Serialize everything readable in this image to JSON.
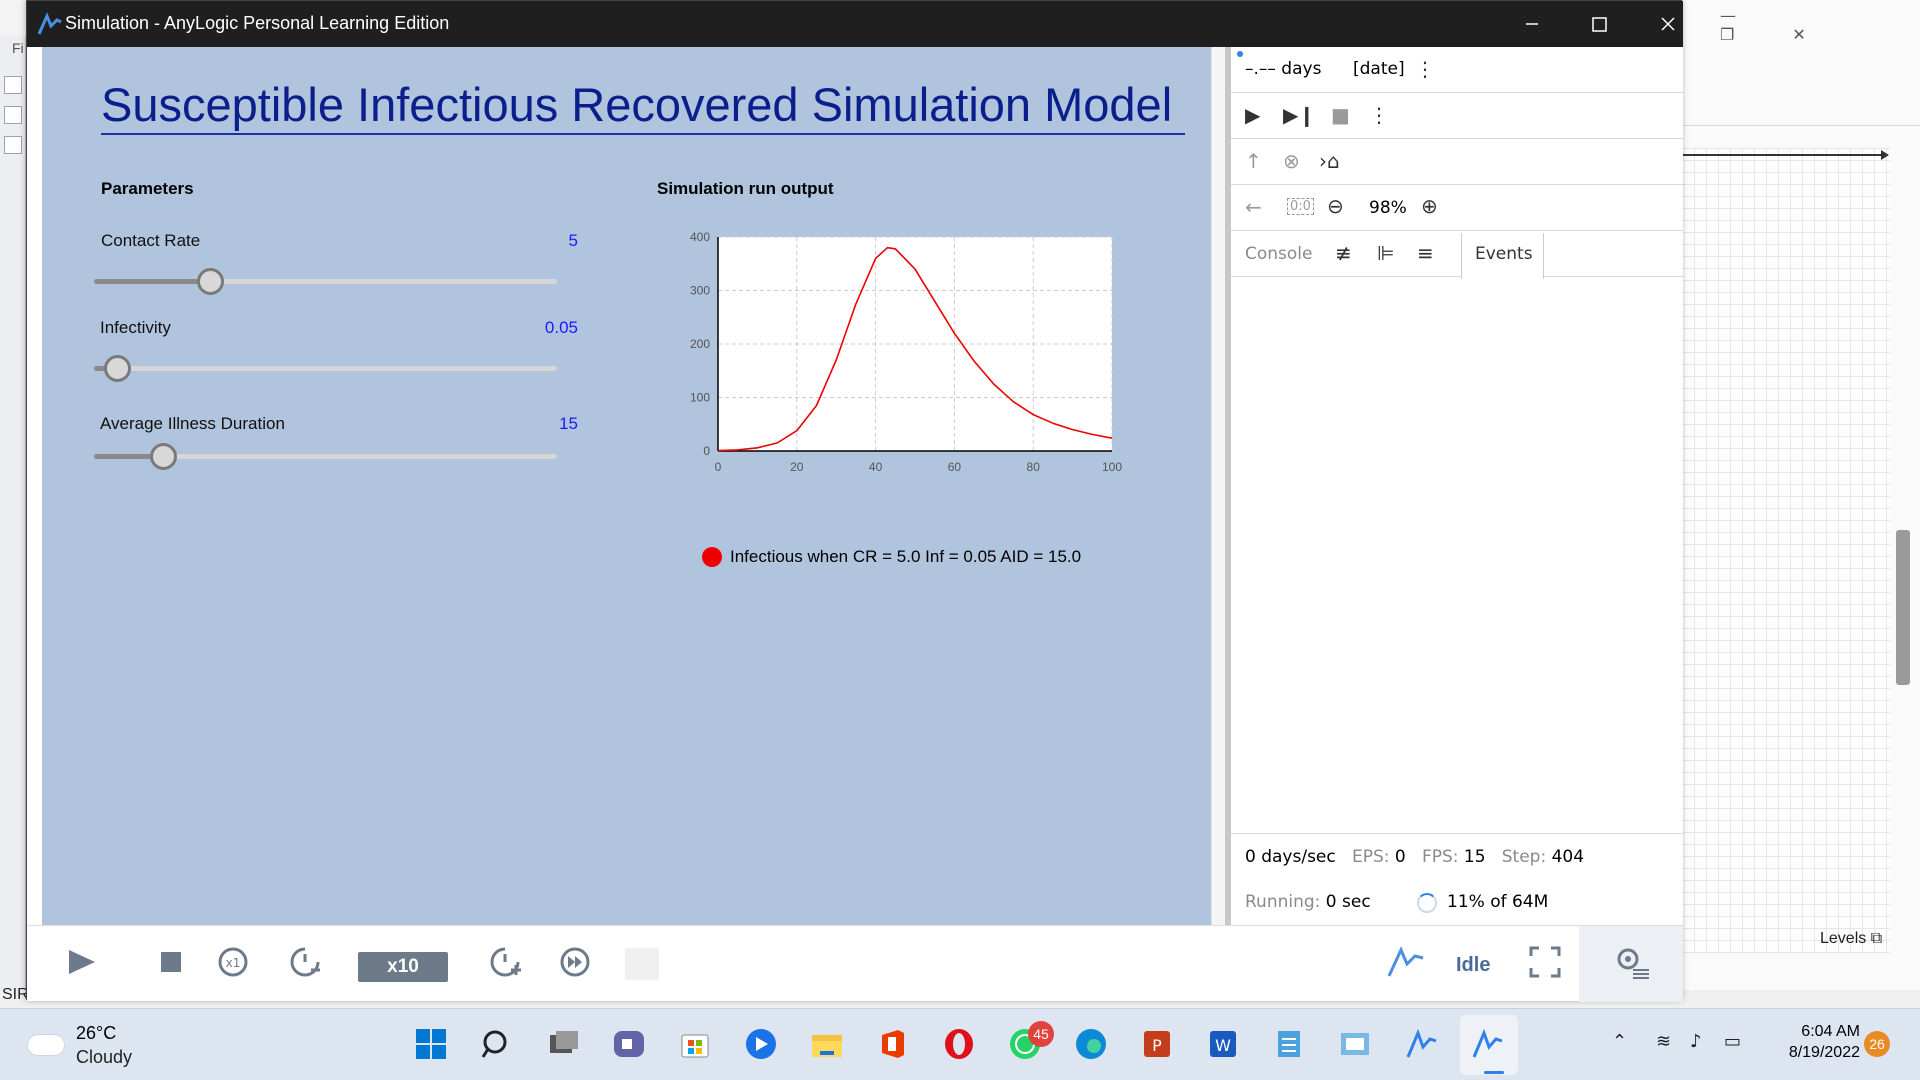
{
  "window": {
    "title": "Simulation - AnyLogic Personal Learning Edition"
  },
  "model": {
    "title": "Susceptible Infectious Recovered Simulation Model",
    "parameters_heading": "Parameters",
    "output_heading": "Simulation run output",
    "parameters": [
      {
        "label": "Contact Rate",
        "value": "5",
        "slider_fraction": 0.25
      },
      {
        "label": "Infectivity",
        "value": "0.05",
        "slider_fraction": 0.05
      },
      {
        "label": "Average Illness Duration",
        "value": "15",
        "slider_fraction": 0.15
      }
    ]
  },
  "chart_data": {
    "type": "line",
    "title": "",
    "xlabel": "",
    "ylabel": "",
    "xlim": [
      0,
      100
    ],
    "ylim": [
      0,
      400
    ],
    "x_ticks": [
      "0",
      "20",
      "40",
      "60",
      "80",
      "100"
    ],
    "y_ticks": [
      "0",
      "100",
      "200",
      "300",
      "400"
    ],
    "grid": true,
    "legend_position": "bottom",
    "series": [
      {
        "name": "Infectious when CR = 5.0 Inf = 0.05 AID = 15.0",
        "color": "#ee0000",
        "x": [
          0,
          5,
          10,
          15,
          20,
          25,
          30,
          35,
          40,
          43,
          45,
          50,
          55,
          60,
          65,
          70,
          75,
          80,
          85,
          90,
          95,
          100
        ],
        "y": [
          1,
          2,
          6,
          15,
          38,
          85,
          170,
          275,
          360,
          380,
          378,
          340,
          280,
          220,
          168,
          125,
          92,
          68,
          52,
          40,
          31,
          24
        ]
      }
    ]
  },
  "right_panel": {
    "time_label": "–.–– days",
    "date_label": "[date]",
    "zoom": "98%",
    "console_tab": "Console",
    "events_tab": "Events",
    "stats": {
      "speed": "0 days/sec",
      "eps_label": "EPS:",
      "eps_value": "0",
      "fps_label": "FPS:",
      "fps_value": "15",
      "step_label": "Step:",
      "step_value": "404",
      "running_label": "Running:",
      "running_value": "0 sec",
      "memory": "11% of 64M"
    }
  },
  "toolbar": {
    "speed_label": "x10",
    "status": "Idle"
  },
  "background_ide": {
    "levels_label": "Levels",
    "sir_label": "SIR",
    "file_menu_fragment": "Fi"
  },
  "taskbar": {
    "temperature": "26°C",
    "weather": "Cloudy",
    "time": "6:04 AM",
    "date": "8/19/2022",
    "whatsapp_badge": "45",
    "notification_badge": "26"
  },
  "colors": {
    "presentation_bg": "#b0c4de",
    "title_blue": "#0a1e8c",
    "value_blue": "#1a1aff",
    "series_red": "#ee0000",
    "accent": "#2f80ed"
  }
}
